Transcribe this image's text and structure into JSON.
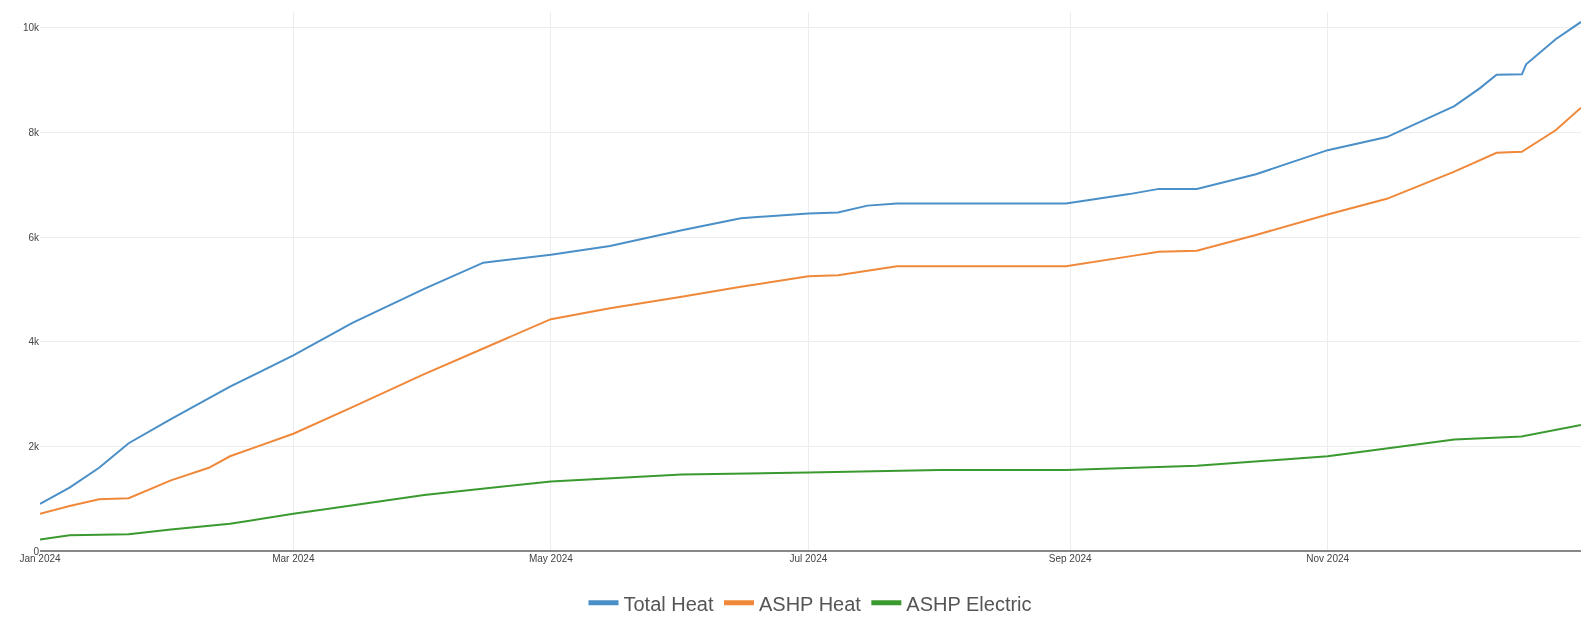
{
  "chart_data": {
    "type": "line",
    "xlim": [
      "2024-01-01",
      "2024-12-31"
    ],
    "ylim": [
      0,
      10300
    ],
    "xticks": [
      {
        "value": "2024-01-01",
        "label": "Jan 2024"
      },
      {
        "value": "2024-03-01",
        "label": "Mar 2024"
      },
      {
        "value": "2024-05-01",
        "label": "May 2024"
      },
      {
        "value": "2024-07-01",
        "label": "Jul 2024"
      },
      {
        "value": "2024-09-01",
        "label": "Sep 2024"
      },
      {
        "value": "2024-11-01",
        "label": "Nov 2024"
      }
    ],
    "yticks": [
      0,
      {
        "value": 2000,
        "label": "2k"
      },
      {
        "value": 4000,
        "label": "4k"
      },
      {
        "value": 6000,
        "label": "6k"
      },
      {
        "value": 8000,
        "label": "8k"
      },
      {
        "value": 10000,
        "label": "10k"
      }
    ],
    "grid": true,
    "legend": "bottom",
    "marker": "none",
    "line_style": "solid",
    "series": [
      {
        "name": "Total Heat",
        "color": "#4a8fc7",
        "x": [
          "2024-01-01",
          "2024-01-08",
          "2024-01-15",
          "2024-01-22",
          "2024-02-01",
          "2024-02-15",
          "2024-03-01",
          "2024-03-15",
          "2024-04-01",
          "2024-04-15",
          "2024-05-01",
          "2024-05-15",
          "2024-06-01",
          "2024-06-15",
          "2024-07-01",
          "2024-07-08",
          "2024-07-15",
          "2024-07-22",
          "2024-08-01",
          "2024-08-31",
          "2024-09-15",
          "2024-09-22",
          "2024-10-01",
          "2024-10-15",
          "2024-11-01",
          "2024-11-15",
          "2024-12-01",
          "2024-12-07",
          "2024-12-11",
          "2024-12-17",
          "2024-12-18",
          "2024-12-25",
          "2024-12-31"
        ],
        "values": [
          900,
          1210,
          1590,
          2060,
          2520,
          3140,
          3740,
          4360,
          5010,
          5510,
          5660,
          5830,
          6130,
          6360,
          6450,
          6470,
          6600,
          6640,
          6640,
          6640,
          6820,
          6920,
          6920,
          7200,
          7660,
          7910,
          8500,
          8840,
          9100,
          9110,
          9300,
          9780,
          10110
        ]
      },
      {
        "name": "ASHP Heat",
        "color": "#f0883a",
        "x": [
          "2024-01-01",
          "2024-01-08",
          "2024-01-15",
          "2024-01-22",
          "2024-02-01",
          "2024-02-10",
          "2024-02-15",
          "2024-03-01",
          "2024-03-15",
          "2024-04-01",
          "2024-04-15",
          "2024-05-01",
          "2024-05-15",
          "2024-06-01",
          "2024-06-15",
          "2024-07-01",
          "2024-07-08",
          "2024-07-22",
          "2024-08-31",
          "2024-09-15",
          "2024-09-22",
          "2024-10-01",
          "2024-10-15",
          "2024-11-01",
          "2024-11-15",
          "2024-12-01",
          "2024-12-11",
          "2024-12-17",
          "2024-12-25",
          "2024-12-31"
        ],
        "values": [
          710,
          860,
          990,
          1010,
          1350,
          1590,
          1810,
          2240,
          2750,
          3380,
          3870,
          4430,
          4640,
          4860,
          5050,
          5250,
          5270,
          5440,
          5440,
          5630,
          5720,
          5740,
          6040,
          6430,
          6730,
          7250,
          7610,
          7630,
          8040,
          8470
        ]
      },
      {
        "name": "ASHP Electric",
        "color": "#3b9a2f",
        "x": [
          "2024-01-01",
          "2024-01-08",
          "2024-01-22",
          "2024-02-01",
          "2024-02-15",
          "2024-03-01",
          "2024-04-01",
          "2024-05-01",
          "2024-06-01",
          "2024-07-01",
          "2024-08-01",
          "2024-08-31",
          "2024-10-01",
          "2024-11-01",
          "2024-12-01",
          "2024-12-17",
          "2024-12-31"
        ],
        "values": [
          220,
          300,
          320,
          410,
          520,
          710,
          1070,
          1330,
          1460,
          1500,
          1550,
          1550,
          1630,
          1810,
          2130,
          2190,
          2410
        ]
      }
    ]
  }
}
